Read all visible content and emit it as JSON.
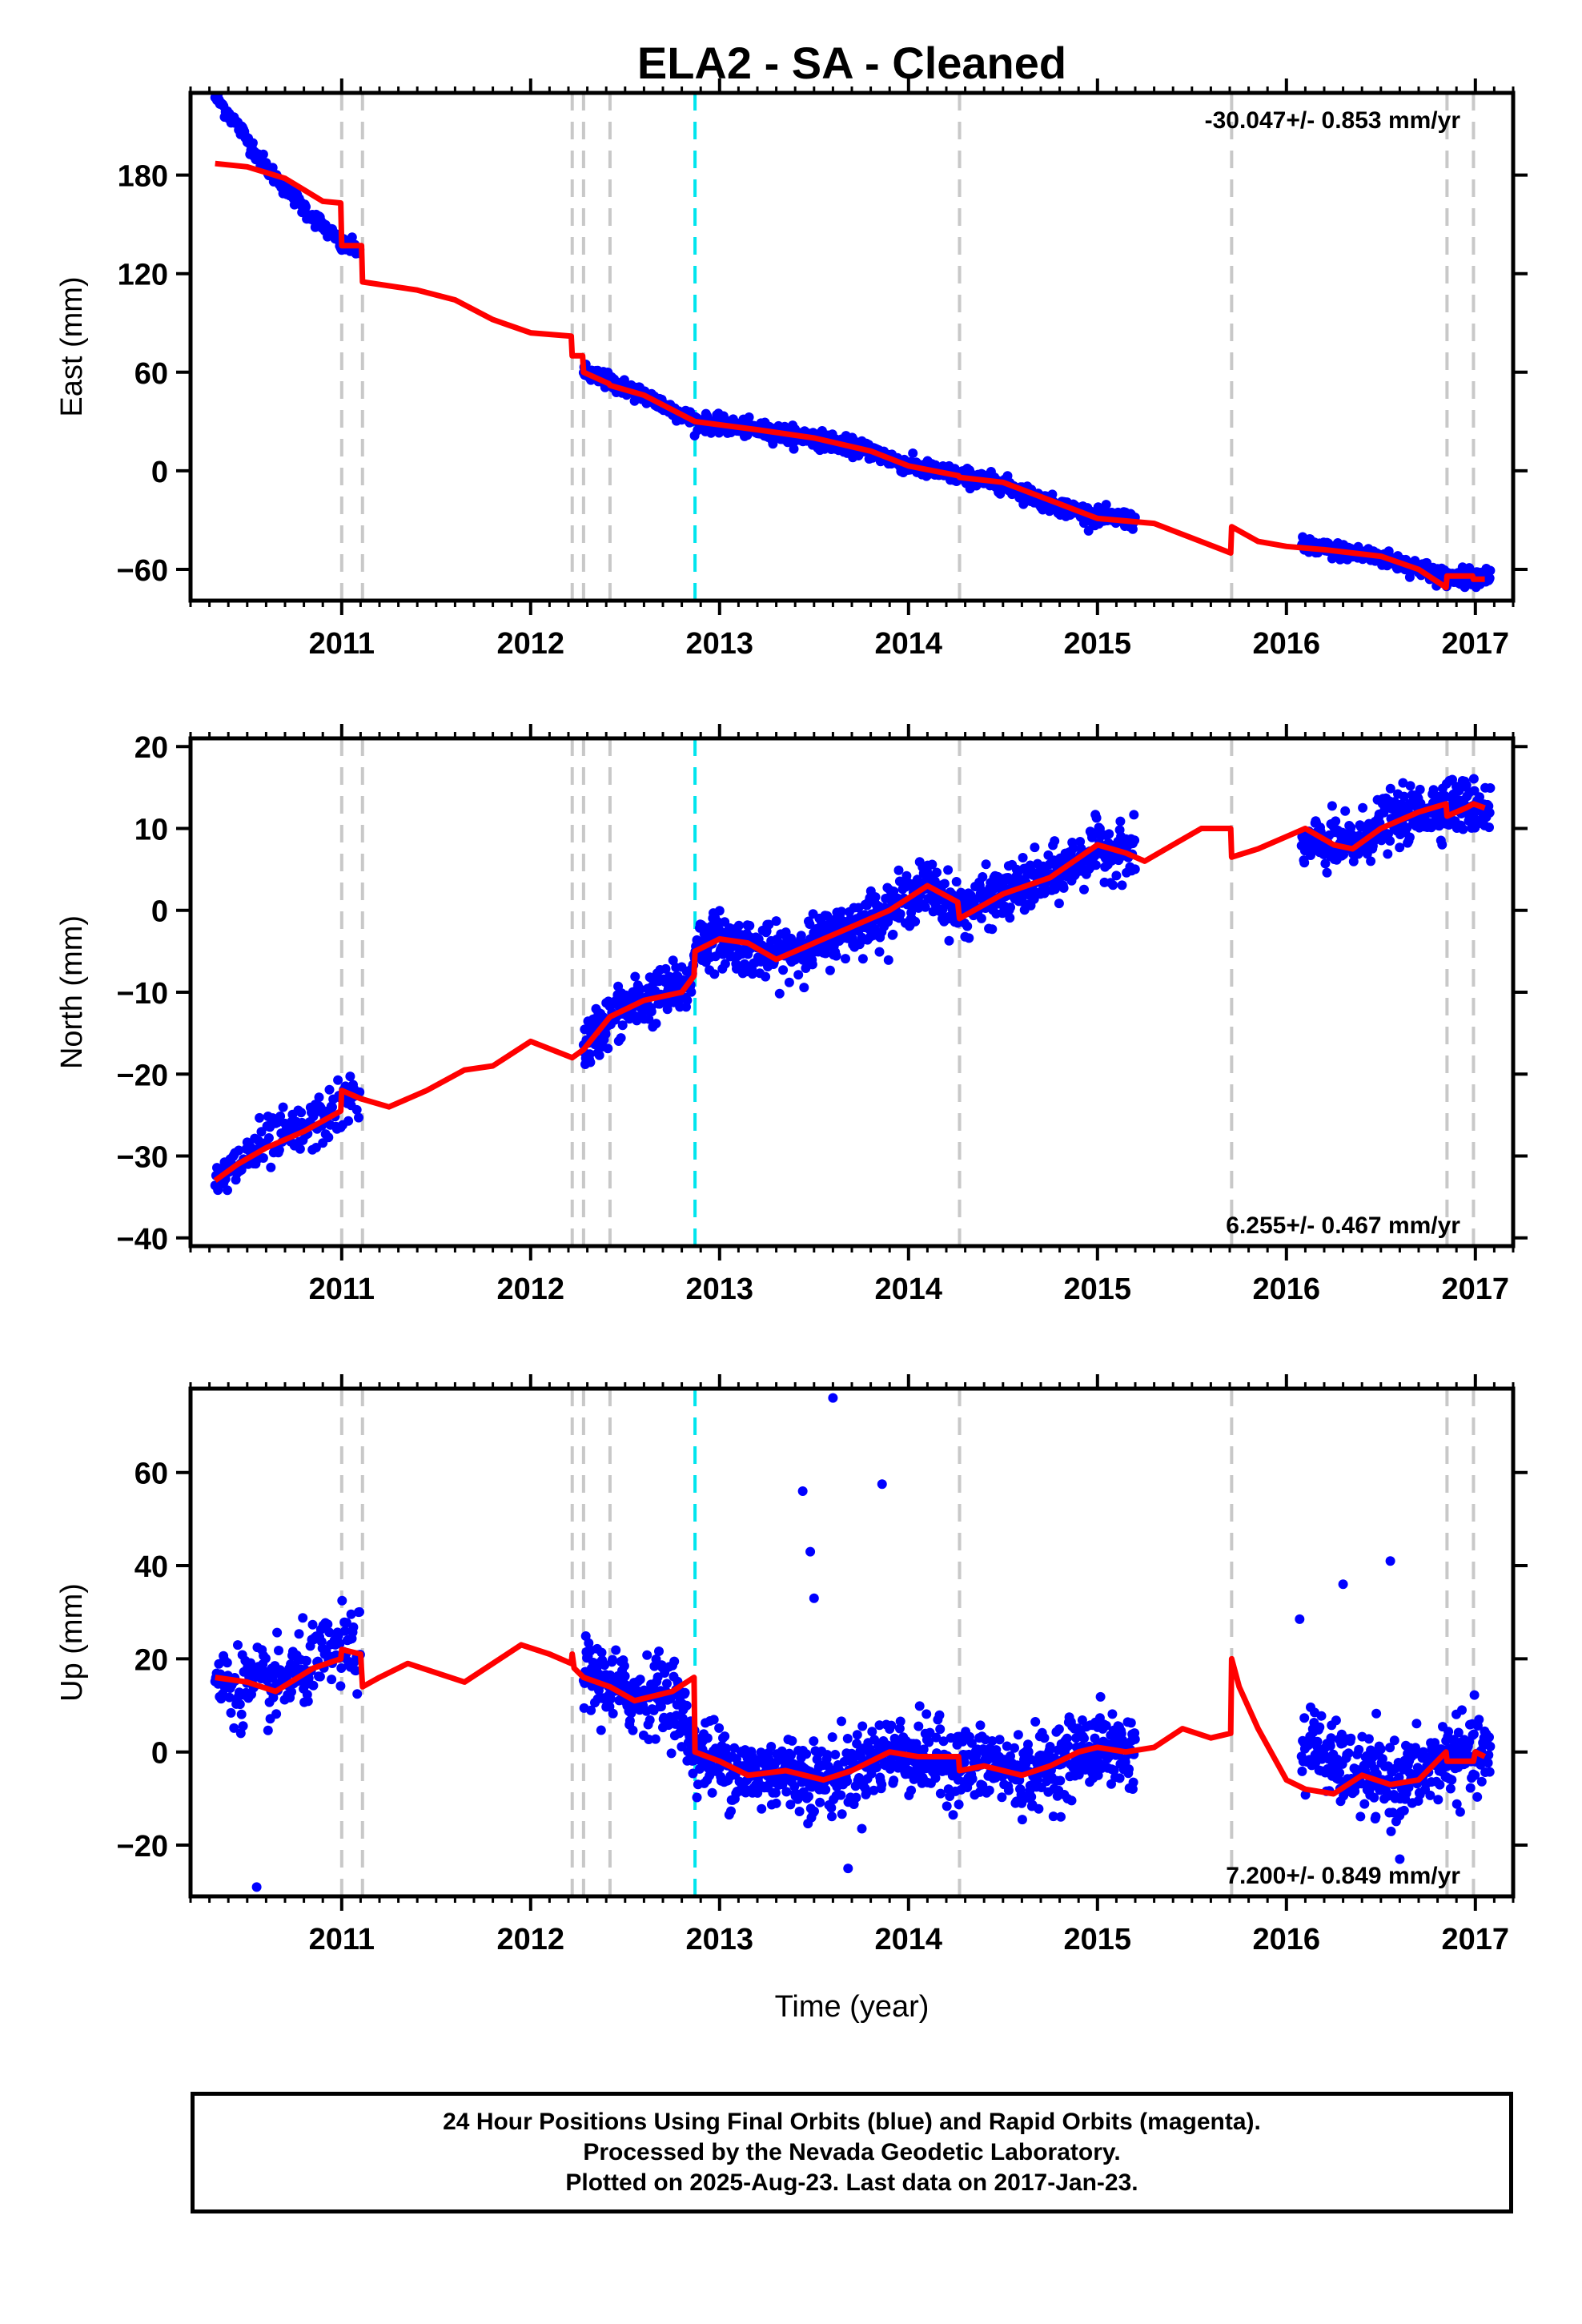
{
  "title": "ELA2  - SA - Cleaned",
  "xlabel": "Time (year)",
  "colors": {
    "data": "#0000ff",
    "model": "#ff0000",
    "event_line": "#c8c8c8",
    "highlight_line": "#00e5ee"
  },
  "footer": {
    "line1": "24 Hour Positions Using Final Orbits (blue) and Rapid Orbits (magenta).",
    "line2": "Processed by the Nevada Geodetic Laboratory.",
    "line3": "Plotted on 2025-Aug-23. Last data on 2017-Jan-23."
  },
  "chart_data": [
    {
      "type": "scatter",
      "ylabel": "East (mm)",
      "rate_text": "-30.047+/- 0.853 mm/yr",
      "xlim": [
        2010.2,
        2017.2
      ],
      "ylim": [
        -79,
        230
      ],
      "xticks": [
        2011,
        2012,
        2013,
        2014,
        2015,
        2016,
        2017
      ],
      "yticks": [
        -60,
        0,
        60,
        120,
        180
      ],
      "event_lines": [
        2011.0,
        2011.11,
        2012.22,
        2012.28,
        2012.42,
        2014.27,
        2015.71,
        2016.85,
        2016.99
      ],
      "highlight_lines": [
        2012.87
      ],
      "model": [
        [
          2010.33,
          187
        ],
        [
          2010.5,
          185
        ],
        [
          2010.7,
          178
        ],
        [
          2010.9,
          164
        ],
        [
          2010.995,
          163
        ],
        [
          2011.0,
          137
        ],
        [
          2011.105,
          137
        ],
        [
          2011.11,
          115
        ],
        [
          2011.4,
          110
        ],
        [
          2011.6,
          104
        ],
        [
          2011.8,
          92
        ],
        [
          2012.0,
          84
        ],
        [
          2012.215,
          82
        ],
        [
          2012.22,
          70
        ],
        [
          2012.275,
          70
        ],
        [
          2012.28,
          60
        ],
        [
          2012.415,
          53
        ],
        [
          2012.42,
          52
        ],
        [
          2012.6,
          46
        ],
        [
          2012.87,
          30
        ],
        [
          2013.2,
          25
        ],
        [
          2013.5,
          20
        ],
        [
          2013.8,
          12
        ],
        [
          2014.0,
          3
        ],
        [
          2014.265,
          -3
        ],
        [
          2014.27,
          -4
        ],
        [
          2014.5,
          -7
        ],
        [
          2014.75,
          -18
        ],
        [
          2015.0,
          -29
        ],
        [
          2015.3,
          -32
        ],
        [
          2015.705,
          -50
        ],
        [
          2015.71,
          -34
        ],
        [
          2015.85,
          -43
        ],
        [
          2016.0,
          -46
        ],
        [
          2016.2,
          -48
        ],
        [
          2016.5,
          -52
        ],
        [
          2016.7,
          -60
        ],
        [
          2016.845,
          -71
        ],
        [
          2016.85,
          -64
        ],
        [
          2016.985,
          -64
        ],
        [
          2016.99,
          -66
        ],
        [
          2017.05,
          -66
        ]
      ],
      "data_segments": [
        {
          "start": 2010.33,
          "end": 2011.0,
          "step": 0.005,
          "noise": 2.5,
          "path": [
            [
              2010.33,
              228
            ],
            [
              2010.45,
              210
            ],
            [
              2010.6,
              185
            ],
            [
              2010.8,
              160
            ],
            [
              2011.0,
              138
            ]
          ]
        },
        {
          "start": 2011.0,
          "end": 2011.1,
          "step": 0.005,
          "noise": 2.5,
          "path": [
            [
              2011.0,
              137
            ],
            [
              2011.1,
              135
            ]
          ]
        },
        {
          "start": 2012.28,
          "end": 2015.2,
          "step": 0.003,
          "noise": 2.5,
          "path": [
            [
              2012.28,
              60
            ],
            [
              2012.42,
              54
            ],
            [
              2012.6,
              46
            ],
            [
              2012.87,
              30
            ],
            [
              2013.2,
              25
            ],
            [
              2013.5,
              20
            ],
            [
              2013.8,
              12
            ],
            [
              2014.0,
              3
            ],
            [
              2014.27,
              -3
            ],
            [
              2014.5,
              -8
            ],
            [
              2014.75,
              -20
            ],
            [
              2015.0,
              -28
            ],
            [
              2015.2,
              -30
            ]
          ]
        },
        {
          "start": 2016.08,
          "end": 2017.08,
          "step": 0.003,
          "noise": 2.5,
          "path": [
            [
              2016.08,
              -46
            ],
            [
              2016.3,
              -49
            ],
            [
              2016.5,
              -53
            ],
            [
              2016.7,
              -59
            ],
            [
              2016.85,
              -65
            ],
            [
              2017.08,
              -64
            ]
          ]
        }
      ]
    },
    {
      "type": "scatter",
      "ylabel": "North (mm)",
      "rate_text": "6.255+/- 0.467 mm/yr",
      "xlim": [
        2010.2,
        2017.2
      ],
      "ylim": [
        -41,
        21
      ],
      "xticks": [
        2011,
        2012,
        2013,
        2014,
        2015,
        2016,
        2017
      ],
      "yticks": [
        -40,
        -30,
        -20,
        -10,
        0,
        10,
        20
      ],
      "event_lines": [
        2011.0,
        2011.11,
        2012.22,
        2012.28,
        2012.42,
        2014.27,
        2015.71,
        2016.85,
        2016.99
      ],
      "highlight_lines": [
        2012.87
      ],
      "model": [
        [
          2010.33,
          -33
        ],
        [
          2010.45,
          -31
        ],
        [
          2010.6,
          -29
        ],
        [
          2010.8,
          -27
        ],
        [
          2010.995,
          -24.5
        ],
        [
          2011.0,
          -22
        ],
        [
          2011.1,
          -23
        ],
        [
          2011.25,
          -24
        ],
        [
          2011.45,
          -22
        ],
        [
          2011.65,
          -19.5
        ],
        [
          2011.8,
          -19
        ],
        [
          2012.0,
          -16
        ],
        [
          2012.22,
          -18
        ],
        [
          2012.28,
          -17
        ],
        [
          2012.42,
          -13
        ],
        [
          2012.6,
          -11
        ],
        [
          2012.8,
          -10
        ],
        [
          2012.865,
          -8
        ],
        [
          2012.87,
          -5
        ],
        [
          2013.0,
          -3.5
        ],
        [
          2013.15,
          -4
        ],
        [
          2013.3,
          -6
        ],
        [
          2013.5,
          -4
        ],
        [
          2013.7,
          -2
        ],
        [
          2013.9,
          0
        ],
        [
          2014.1,
          3
        ],
        [
          2014.26,
          1
        ],
        [
          2014.27,
          -1
        ],
        [
          2014.5,
          2
        ],
        [
          2014.75,
          4
        ],
        [
          2015.0,
          8
        ],
        [
          2015.15,
          7
        ],
        [
          2015.25,
          6
        ],
        [
          2015.4,
          8
        ],
        [
          2015.55,
          10
        ],
        [
          2015.705,
          10
        ],
        [
          2015.71,
          6.5
        ],
        [
          2015.85,
          7.5
        ],
        [
          2016.0,
          9
        ],
        [
          2016.1,
          10
        ],
        [
          2016.25,
          8
        ],
        [
          2016.35,
          7.5
        ],
        [
          2016.5,
          10
        ],
        [
          2016.7,
          12
        ],
        [
          2016.845,
          13
        ],
        [
          2016.85,
          11.5
        ],
        [
          2016.95,
          12.5
        ],
        [
          2016.99,
          13
        ],
        [
          2017.05,
          12.5
        ]
      ],
      "data_segments": [
        {
          "start": 2010.33,
          "end": 2011.1,
          "step": 0.005,
          "noise": 1.6,
          "path": [
            [
              2010.33,
              -34
            ],
            [
              2010.45,
              -31
            ],
            [
              2010.6,
              -28.5
            ],
            [
              2010.8,
              -27
            ],
            [
              2011.0,
              -24
            ],
            [
              2011.1,
              -22
            ]
          ]
        },
        {
          "start": 2012.28,
          "end": 2015.2,
          "step": 0.003,
          "noise": 1.6,
          "path": [
            [
              2012.28,
              -17
            ],
            [
              2012.42,
              -13
            ],
            [
              2012.6,
              -11
            ],
            [
              2012.85,
              -9
            ],
            [
              2012.87,
              -4
            ],
            [
              2013.0,
              -3.5
            ],
            [
              2013.3,
              -5.5
            ],
            [
              2013.5,
              -4
            ],
            [
              2013.7,
              -2
            ],
            [
              2013.9,
              0
            ],
            [
              2014.1,
              3
            ],
            [
              2014.27,
              0
            ],
            [
              2014.5,
              2
            ],
            [
              2014.75,
              4
            ],
            [
              2015.0,
              7.5
            ],
            [
              2015.2,
              7
            ]
          ]
        },
        {
          "start": 2016.08,
          "end": 2017.08,
          "step": 0.003,
          "noise": 1.6,
          "path": [
            [
              2016.08,
              8
            ],
            [
              2016.2,
              8
            ],
            [
              2016.35,
              8
            ],
            [
              2016.5,
              10.5
            ],
            [
              2016.7,
              12
            ],
            [
              2016.85,
              13
            ],
            [
              2017.08,
              12.5
            ]
          ]
        }
      ]
    },
    {
      "type": "scatter",
      "ylabel": "Up (mm)",
      "rate_text": "7.200+/- 0.849 mm/yr",
      "xlim": [
        2010.2,
        2017.2
      ],
      "ylim": [
        -31,
        78
      ],
      "xticks": [
        2011,
        2012,
        2013,
        2014,
        2015,
        2016,
        2017
      ],
      "yticks": [
        -20,
        0,
        20,
        40,
        60
      ],
      "event_lines": [
        2011.0,
        2011.11,
        2012.22,
        2012.28,
        2012.42,
        2014.27,
        2015.71,
        2016.85,
        2016.99
      ],
      "highlight_lines": [
        2012.87
      ],
      "model": [
        [
          2010.33,
          16
        ],
        [
          2010.5,
          15
        ],
        [
          2010.65,
          13
        ],
        [
          2010.85,
          18
        ],
        [
          2010.995,
          20
        ],
        [
          2011.0,
          22
        ],
        [
          2011.1,
          21
        ],
        [
          2011.11,
          14
        ],
        [
          2011.2,
          16
        ],
        [
          2011.35,
          19
        ],
        [
          2011.5,
          17
        ],
        [
          2011.65,
          15
        ],
        [
          2011.8,
          19
        ],
        [
          2011.95,
          23
        ],
        [
          2012.1,
          21
        ],
        [
          2012.215,
          19
        ],
        [
          2012.22,
          21
        ],
        [
          2012.23,
          18
        ],
        [
          2012.28,
          16
        ],
        [
          2012.42,
          14
        ],
        [
          2012.55,
          11
        ],
        [
          2012.75,
          13
        ],
        [
          2012.865,
          16
        ],
        [
          2012.87,
          0
        ],
        [
          2013.0,
          -2
        ],
        [
          2013.15,
          -5
        ],
        [
          2013.35,
          -4
        ],
        [
          2013.55,
          -6
        ],
        [
          2013.7,
          -4
        ],
        [
          2013.9,
          0
        ],
        [
          2014.05,
          -1
        ],
        [
          2014.265,
          -1
        ],
        [
          2014.27,
          -4
        ],
        [
          2014.4,
          -3
        ],
        [
          2014.6,
          -5
        ],
        [
          2014.75,
          -3
        ],
        [
          2014.9,
          0
        ],
        [
          2015.0,
          1
        ],
        [
          2015.15,
          0
        ],
        [
          2015.3,
          1
        ],
        [
          2015.45,
          5
        ],
        [
          2015.6,
          3
        ],
        [
          2015.705,
          4
        ],
        [
          2015.71,
          20
        ],
        [
          2015.75,
          14
        ],
        [
          2015.85,
          5
        ],
        [
          2016.0,
          -6
        ],
        [
          2016.1,
          -8
        ],
        [
          2016.25,
          -9
        ],
        [
          2016.4,
          -5
        ],
        [
          2016.55,
          -7
        ],
        [
          2016.7,
          -6
        ],
        [
          2016.845,
          0
        ],
        [
          2016.85,
          -2
        ],
        [
          2016.99,
          -2
        ],
        [
          2017.0,
          0
        ],
        [
          2017.05,
          -1
        ]
      ],
      "data_segments": [
        {
          "start": 2010.33,
          "end": 2011.1,
          "step": 0.004,
          "noise": 4.0,
          "path": [
            [
              2010.33,
              15
            ],
            [
              2010.5,
              14
            ],
            [
              2010.65,
              14
            ],
            [
              2010.85,
              19
            ],
            [
              2011.0,
              22
            ],
            [
              2011.1,
              22
            ]
          ]
        },
        {
          "start": 2012.28,
          "end": 2015.2,
          "step": 0.003,
          "noise": 4.0,
          "path": [
            [
              2012.28,
              17
            ],
            [
              2012.42,
              14
            ],
            [
              2012.55,
              12
            ],
            [
              2012.75,
              13
            ],
            [
              2012.87,
              0
            ],
            [
              2013.0,
              -2
            ],
            [
              2013.15,
              -5
            ],
            [
              2013.35,
              -4
            ],
            [
              2013.55,
              -6
            ],
            [
              2013.7,
              -4
            ],
            [
              2013.9,
              0
            ],
            [
              2014.05,
              -1
            ],
            [
              2014.27,
              -3
            ],
            [
              2014.45,
              -3
            ],
            [
              2014.6,
              -5
            ],
            [
              2014.75,
              -3
            ],
            [
              2014.9,
              0
            ],
            [
              2015.0,
              1
            ],
            [
              2015.2,
              0
            ]
          ]
        },
        {
          "start": 2016.08,
          "end": 2017.08,
          "step": 0.003,
          "noise": 4.0,
          "path": [
            [
              2016.08,
              0
            ],
            [
              2016.15,
              2
            ],
            [
              2016.25,
              -3
            ],
            [
              2016.4,
              -5
            ],
            [
              2016.55,
              -7
            ],
            [
              2016.7,
              -5
            ],
            [
              2016.85,
              -1
            ],
            [
              2017.08,
              -1
            ]
          ]
        }
      ],
      "outliers": [
        [
          2013.44,
          56
        ],
        [
          2013.48,
          43
        ],
        [
          2013.5,
          33
        ],
        [
          2013.6,
          76
        ],
        [
          2013.86,
          57.5
        ],
        [
          2016.07,
          28.5
        ],
        [
          2016.3,
          36
        ],
        [
          2016.55,
          41
        ],
        [
          2010.55,
          -29
        ],
        [
          2013.68,
          -25
        ],
        [
          2016.6,
          -23
        ]
      ]
    }
  ]
}
